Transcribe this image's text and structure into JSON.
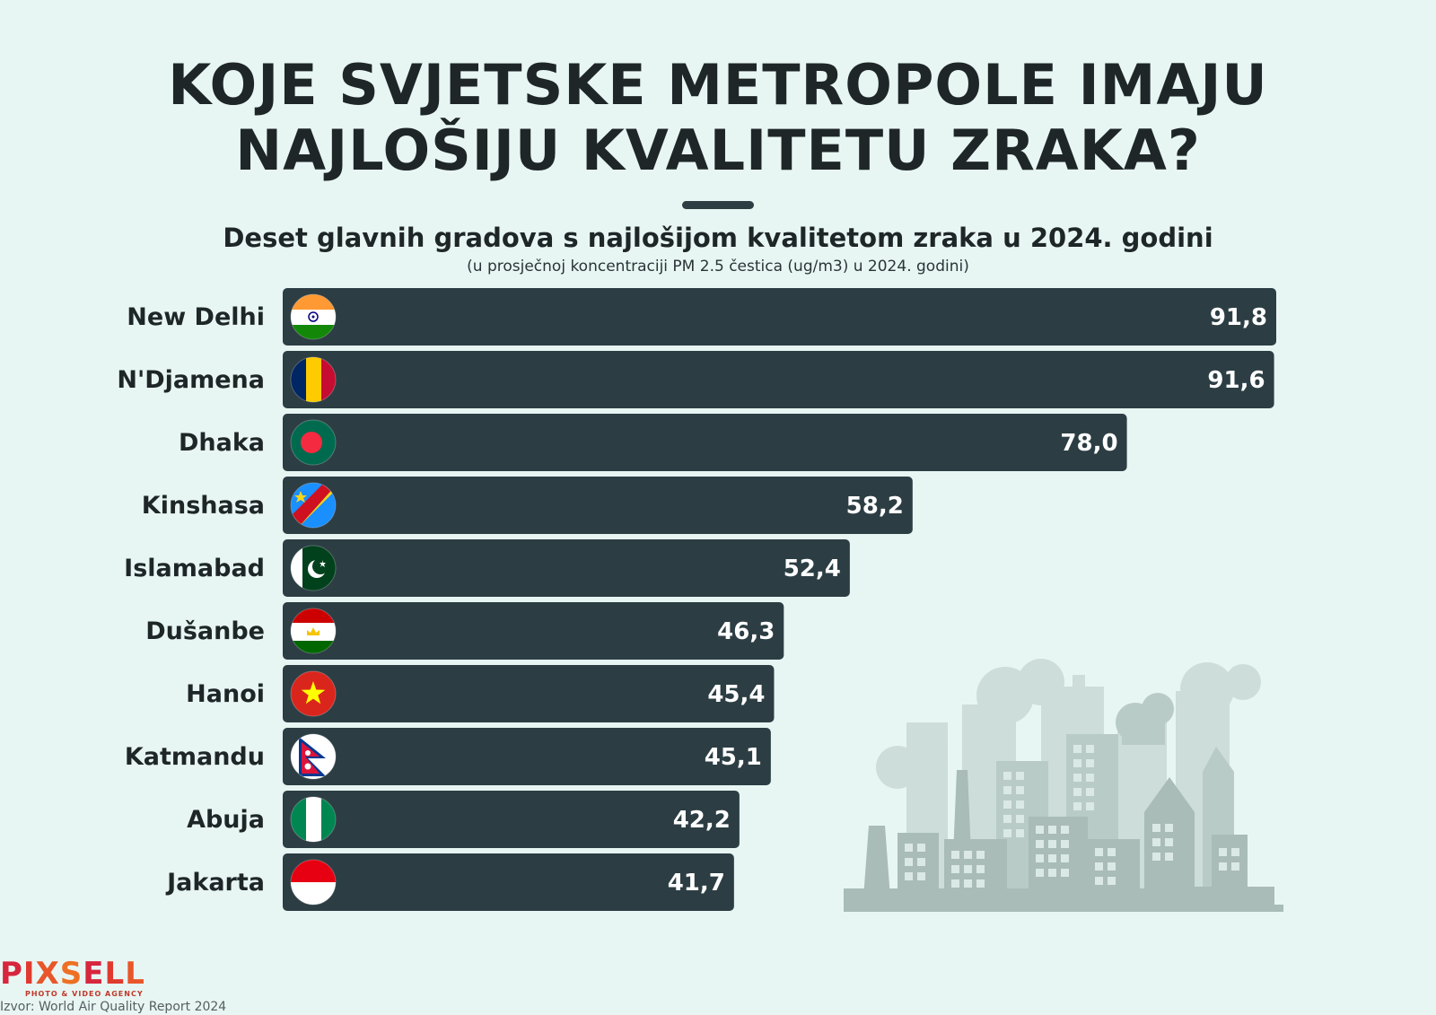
{
  "title_line1": "KOJE SVJETSKE METROPOLE IMAJU",
  "title_line2": "NAJLOŠIJU KVALITETU ZRAKA?",
  "subtitle": "Deset glavnih gradova s najlošijom kvalitetom zraka u 2024. godini",
  "subnote": "(u prosječnoj koncentraciji PM 2.5 čestica (ug/m3) u 2024. godini)",
  "logo": {
    "text": "PIXSELL",
    "tagline": "PHOTO & VIDEO AGENCY"
  },
  "source": "Izvor: World Air Quality Report 2024",
  "colors": {
    "background": "#e8f6f3",
    "bar": "#2c3e44",
    "title": "#1e2628",
    "skyline": "#a9bcb8"
  },
  "chart_data": {
    "type": "bar",
    "orientation": "horizontal",
    "categories": [
      "New Delhi",
      "N'Djamena",
      "Dhaka",
      "Kinshasa",
      "Islamabad",
      "Dušanbe",
      "Hanoi",
      "Katmandu",
      "Abuja",
      "Jakarta"
    ],
    "values": [
      91.8,
      91.6,
      78.0,
      58.2,
      52.4,
      46.3,
      45.4,
      45.1,
      42.2,
      41.7
    ],
    "value_labels": [
      "91,8",
      "91,6",
      "78,0",
      "58,2",
      "52,4",
      "46,3",
      "45,4",
      "45,1",
      "42,2",
      "41,7"
    ],
    "flags": [
      "india-flag-icon",
      "chad-flag-icon",
      "bangladesh-flag-icon",
      "dr-congo-flag-icon",
      "pakistan-flag-icon",
      "tajikistan-flag-icon",
      "vietnam-flag-icon",
      "nepal-flag-icon",
      "nigeria-flag-icon",
      "indonesia-flag-icon"
    ],
    "xlim": [
      0,
      91.8
    ],
    "grid": false,
    "legend": "none"
  }
}
